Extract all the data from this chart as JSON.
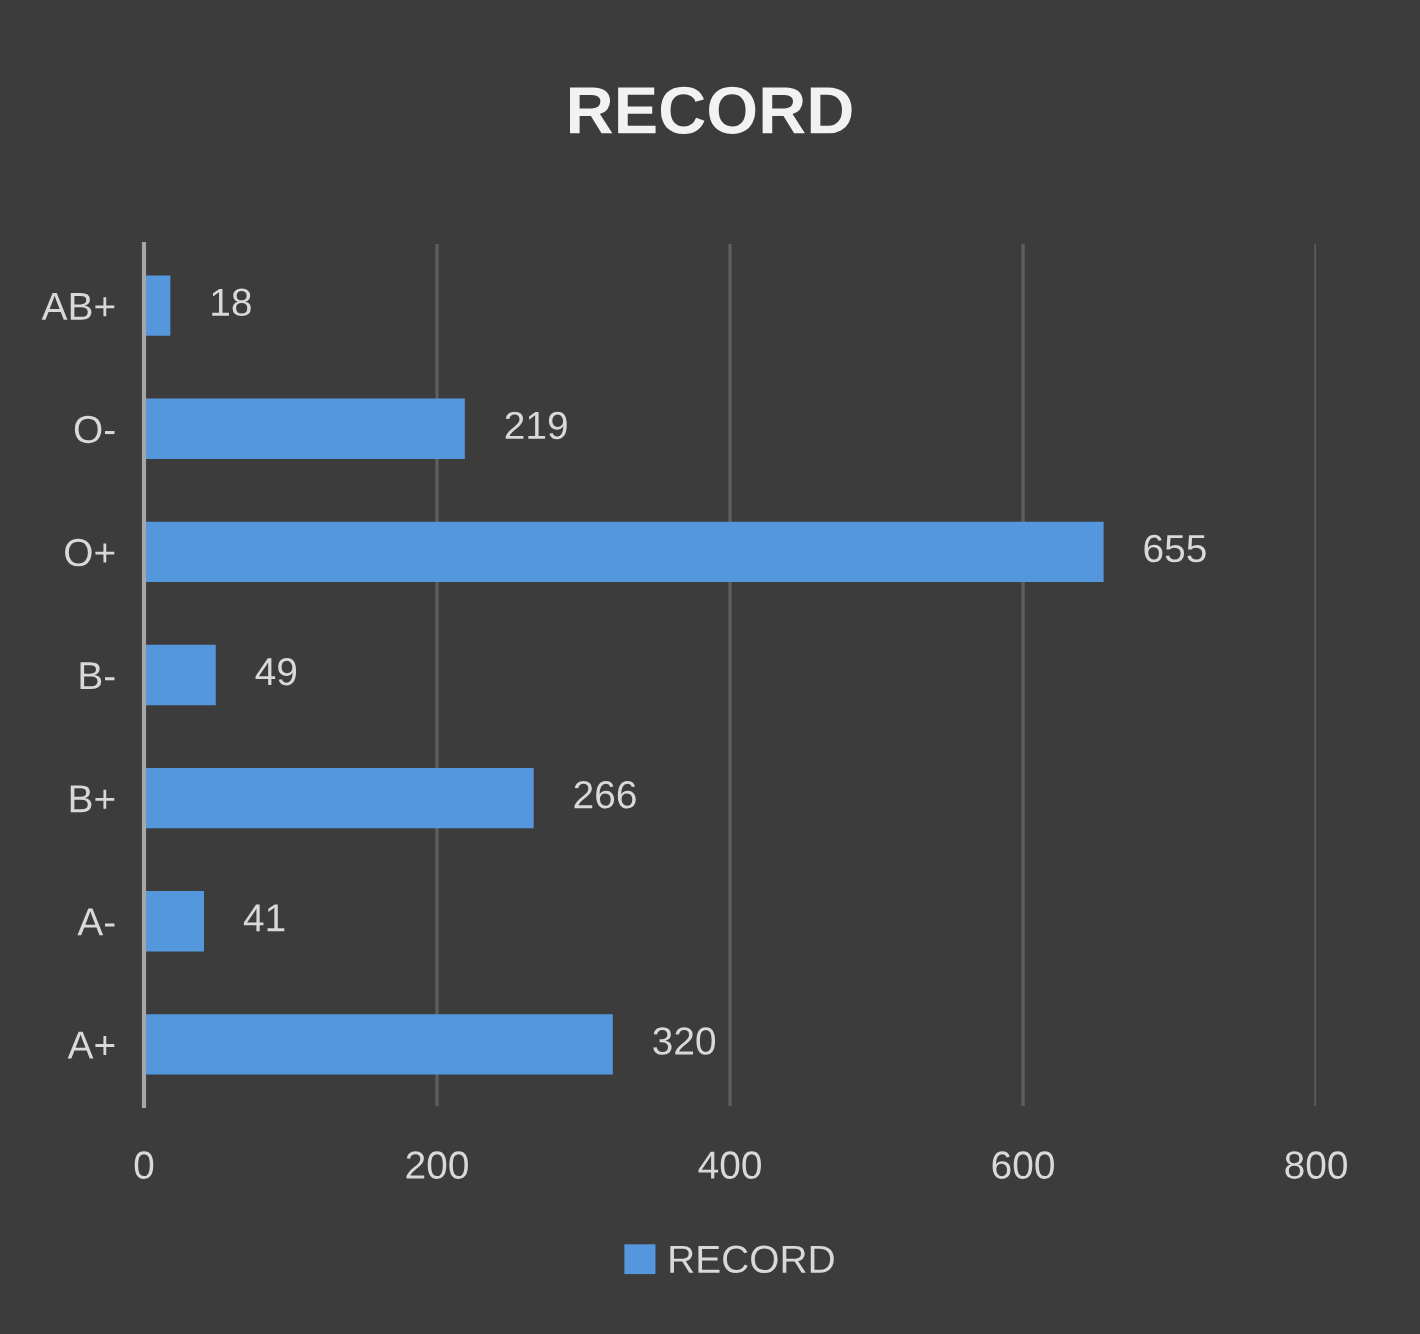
{
  "chart_data": {
    "type": "bar",
    "orientation": "horizontal",
    "title": "RECORD",
    "categories": [
      "AB+",
      "O-",
      "O+",
      "B-",
      "B+",
      "A-",
      "A+"
    ],
    "series": [
      {
        "name": "RECORD",
        "color": "#5597dc",
        "values": [
          18,
          219,
          655,
          49,
          266,
          41,
          320
        ]
      }
    ],
    "xlim": [
      0,
      800
    ],
    "xticks": [
      0,
      200,
      400,
      600,
      800
    ],
    "grid": "x",
    "legend": "bottom",
    "data_labels": true
  }
}
